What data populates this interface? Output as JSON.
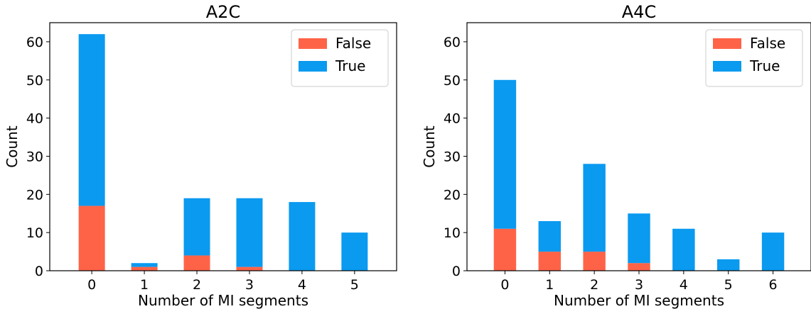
{
  "chart_data": [
    {
      "type": "bar",
      "stacked": true,
      "title": "A2C",
      "xlabel": "Number of MI segments",
      "ylabel": "Count",
      "categories": [
        "0",
        "1",
        "2",
        "3",
        "4",
        "5"
      ],
      "ylim": [
        0,
        65
      ],
      "yticks": [
        0,
        10,
        20,
        30,
        40,
        50,
        60
      ],
      "series": [
        {
          "name": "False",
          "color": "#ff6347",
          "values": [
            17,
            1,
            4,
            1,
            0,
            0
          ]
        },
        {
          "name": "True",
          "color": "#0a9af0",
          "values": [
            45,
            1,
            15,
            18,
            18,
            10
          ]
        }
      ],
      "legend": "top-right",
      "grid": false
    },
    {
      "type": "bar",
      "stacked": true,
      "title": "A4C",
      "xlabel": "Number of MI segments",
      "ylabel": "Count",
      "categories": [
        "0",
        "1",
        "2",
        "3",
        "4",
        "5",
        "6"
      ],
      "ylim": [
        0,
        65
      ],
      "yticks": [
        0,
        10,
        20,
        30,
        40,
        50,
        60
      ],
      "series": [
        {
          "name": "False",
          "color": "#ff6347",
          "values": [
            11,
            5,
            5,
            2,
            0,
            0,
            0
          ]
        },
        {
          "name": "True",
          "color": "#0a9af0",
          "values": [
            39,
            8,
            23,
            13,
            11,
            3,
            10
          ]
        }
      ],
      "legend": "top-right",
      "grid": false
    }
  ]
}
